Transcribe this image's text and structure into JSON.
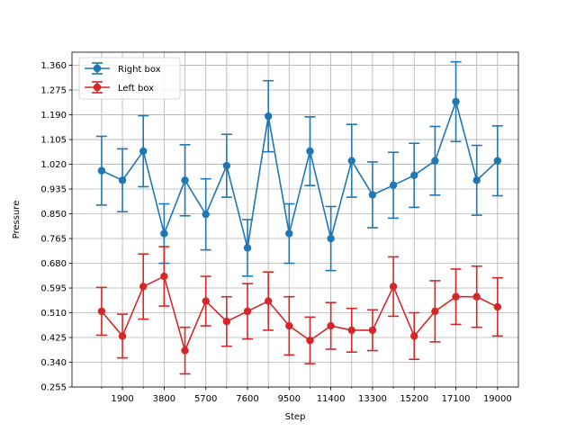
{
  "chart_data": {
    "type": "line",
    "title": "",
    "xlabel": "Step",
    "ylabel": "Pressure",
    "grid": true,
    "legend_position": "top-left",
    "xlim": [
      -400,
      19950
    ],
    "ylim": [
      0.255,
      1.405
    ],
    "x_ticks": [
      1900,
      3800,
      5700,
      7600,
      9500,
      11400,
      13300,
      15200,
      17100,
      19000
    ],
    "x_tick_labels": [
      "1900",
      "3800",
      "5700",
      "7600",
      "9500",
      "11400",
      "13300",
      "15200",
      "17100",
      "19000"
    ],
    "y_ticks": [
      0.255,
      0.34,
      0.425,
      0.51,
      0.595,
      0.68,
      0.765,
      0.85,
      0.935,
      1.02,
      1.105,
      1.19,
      1.275,
      1.36
    ],
    "y_tick_labels": [
      "0.255",
      "0.340",
      "0.425",
      "0.510",
      "0.595",
      "0.680",
      "0.765",
      "0.850",
      "0.935",
      "1.020",
      "1.105",
      "1.190",
      "1.275",
      "1.360"
    ],
    "x": [
      950,
      1900,
      2850,
      3800,
      4750,
      5700,
      6650,
      7600,
      8550,
      9500,
      10450,
      11400,
      12350,
      13300,
      14250,
      15200,
      16150,
      17100,
      18050,
      19000
    ],
    "series": [
      {
        "name": "Right box",
        "color": "#1f77b4",
        "values": [
          0.998,
          0.965,
          1.065,
          0.782,
          0.965,
          0.848,
          1.015,
          0.733,
          1.185,
          0.782,
          1.065,
          0.765,
          1.032,
          0.915,
          0.948,
          0.982,
          1.032,
          1.235,
          0.965,
          1.032
        ],
        "errors": [
          0.118,
          0.108,
          0.122,
          0.102,
          0.122,
          0.122,
          0.108,
          0.097,
          0.122,
          0.102,
          0.118,
          0.11,
          0.125,
          0.113,
          0.113,
          0.11,
          0.118,
          0.137,
          0.12,
          0.12
        ]
      },
      {
        "name": "Left box",
        "color": "#d62728",
        "values": [
          0.515,
          0.43,
          0.6,
          0.635,
          0.38,
          0.55,
          0.48,
          0.515,
          0.55,
          0.465,
          0.415,
          0.465,
          0.45,
          0.45,
          0.6,
          0.43,
          0.515,
          0.565,
          0.565,
          0.53
        ],
        "errors": [
          0.082,
          0.075,
          0.112,
          0.102,
          0.08,
          0.085,
          0.085,
          0.095,
          0.1,
          0.1,
          0.08,
          0.08,
          0.075,
          0.07,
          0.102,
          0.08,
          0.105,
          0.095,
          0.105,
          0.1
        ]
      }
    ]
  }
}
